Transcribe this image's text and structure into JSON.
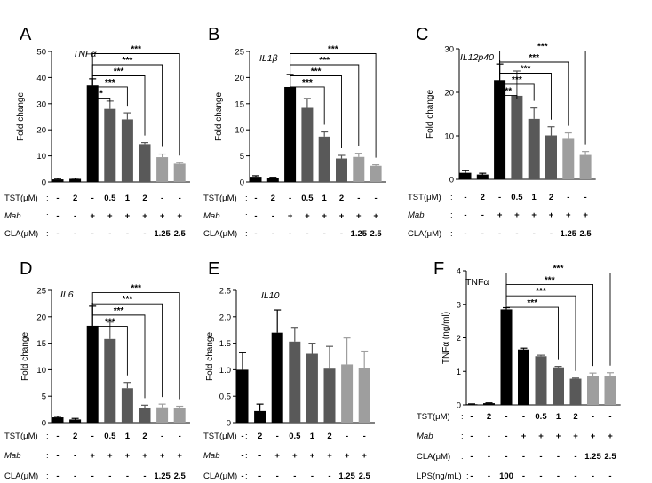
{
  "chart_data": [
    {
      "panel": "A",
      "type": "bar",
      "gene": "TNFα",
      "ylabel": "Fold change",
      "ylim": [
        0,
        50
      ],
      "yticks": [
        0,
        10,
        20,
        30,
        40,
        50
      ],
      "values": [
        1,
        1.2,
        37,
        28,
        24,
        14.5,
        9.5,
        7
      ],
      "errors": [
        0.3,
        0.3,
        2.5,
        3,
        2.5,
        0.6,
        1.2,
        0.4
      ],
      "colors": [
        "#000000",
        "#000000",
        "#000000",
        "#595959",
        "#595959",
        "#595959",
        "#9e9e9e",
        "#9e9e9e"
      ],
      "comparisons": [
        {
          "to": 3,
          "label": "*"
        },
        {
          "to": 4,
          "label": "***"
        },
        {
          "to": 5,
          "label": "***"
        },
        {
          "to": 6,
          "label": "***"
        },
        {
          "to": 7,
          "label": "***"
        }
      ],
      "conditions": [
        {
          "label": "TST(μM)",
          "italic": false,
          "values": [
            "-",
            "2",
            "-",
            "0.5",
            "1",
            "2",
            "-",
            "-"
          ]
        },
        {
          "label": "Mab",
          "italic": true,
          "values": [
            "-",
            "-",
            "+",
            "+",
            "+",
            "+",
            "+",
            "+"
          ]
        },
        {
          "label": "CLA(μM)",
          "italic": false,
          "values": [
            "-",
            "-",
            "-",
            "-",
            "-",
            "-",
            "1.25",
            "2.5"
          ]
        }
      ]
    },
    {
      "panel": "B",
      "type": "bar",
      "gene": "IL1β",
      "ylabel": "Fold change",
      "ylim": [
        0,
        25
      ],
      "yticks": [
        0,
        5,
        10,
        15,
        20,
        25
      ],
      "values": [
        1,
        0.7,
        18.2,
        14.2,
        8.7,
        4.5,
        4.8,
        3.1
      ],
      "errors": [
        0.2,
        0.2,
        2.4,
        1.8,
        0.9,
        0.6,
        0.7,
        0.2
      ],
      "colors": [
        "#000000",
        "#000000",
        "#000000",
        "#595959",
        "#595959",
        "#595959",
        "#9e9e9e",
        "#9e9e9e"
      ],
      "comparisons": [
        {
          "to": 4,
          "label": "***"
        },
        {
          "to": 5,
          "label": "***"
        },
        {
          "to": 6,
          "label": "***"
        },
        {
          "to": 7,
          "label": "***"
        }
      ],
      "conditions": [
        {
          "label": "TST(μM)",
          "italic": false,
          "values": [
            "-",
            "2",
            "-",
            "0.5",
            "1",
            "2",
            "-",
            "-"
          ]
        },
        {
          "label": "Mab",
          "italic": true,
          "values": [
            "-",
            "-",
            "+",
            "+",
            "+",
            "+",
            "+",
            "+"
          ]
        },
        {
          "label": "CLA(μM)",
          "italic": false,
          "values": [
            "-",
            "-",
            "-",
            "-",
            "-",
            "-",
            "1.25",
            "2.5"
          ]
        }
      ]
    },
    {
      "panel": "C",
      "type": "bar",
      "gene": "IL12p40",
      "ylabel": "Fold change",
      "ylim": [
        0,
        30
      ],
      "yticks": [
        0,
        10,
        20,
        30
      ],
      "values": [
        1.5,
        1.1,
        22.8,
        19.2,
        13.9,
        10.1,
        9.5,
        5.6
      ],
      "errors": [
        0.5,
        0.3,
        3.7,
        5.7,
        2.5,
        2.0,
        1.2,
        0.8
      ],
      "colors": [
        "#000000",
        "#000000",
        "#000000",
        "#595959",
        "#595959",
        "#595959",
        "#9e9e9e",
        "#9e9e9e"
      ],
      "comparisons": [
        {
          "to": 3,
          "label": "**"
        },
        {
          "to": 4,
          "label": "***"
        },
        {
          "to": 5,
          "label": "***"
        },
        {
          "to": 6,
          "label": "***"
        },
        {
          "to": 7,
          "label": "***"
        }
      ],
      "conditions": [
        {
          "label": "TST(μM)",
          "italic": false,
          "values": [
            "-",
            "2",
            "-",
            "0.5",
            "1",
            "2",
            "-",
            "-"
          ]
        },
        {
          "label": "Mab",
          "italic": true,
          "values": [
            "-",
            "-",
            "+",
            "+",
            "+",
            "+",
            "+",
            "+"
          ]
        },
        {
          "label": "CLA(μM)",
          "italic": false,
          "values": [
            "-",
            "-",
            "-",
            "-",
            "-",
            "-",
            "1.25",
            "2.5"
          ]
        }
      ]
    },
    {
      "panel": "D",
      "type": "bar",
      "gene": "IL6",
      "ylabel": "Fold change",
      "ylim": [
        0,
        25
      ],
      "yticks": [
        0,
        5,
        10,
        15,
        20,
        25
      ],
      "values": [
        1,
        0.6,
        18.3,
        15.8,
        6.5,
        2.8,
        2.9,
        2.7
      ],
      "errors": [
        0.2,
        0.2,
        3.7,
        3.2,
        1.1,
        0.5,
        0.6,
        0.4
      ],
      "colors": [
        "#000000",
        "#000000",
        "#000000",
        "#595959",
        "#595959",
        "#595959",
        "#9e9e9e",
        "#9e9e9e"
      ],
      "comparisons": [
        {
          "to": 4,
          "label": "***"
        },
        {
          "to": 5,
          "label": "***"
        },
        {
          "to": 6,
          "label": "***"
        },
        {
          "to": 7,
          "label": "***"
        }
      ],
      "conditions": [
        {
          "label": "TST(μM)",
          "italic": false,
          "values": [
            "-",
            "2",
            "-",
            "0.5",
            "1",
            "2",
            "-",
            "-"
          ]
        },
        {
          "label": "Mab",
          "italic": true,
          "values": [
            "-",
            "-",
            "+",
            "+",
            "+",
            "+",
            "+",
            "+"
          ]
        },
        {
          "label": "CLA(μM)",
          "italic": false,
          "values": [
            "-",
            "-",
            "-",
            "-",
            "-",
            "-",
            "1.25",
            "2.5"
          ]
        }
      ]
    },
    {
      "panel": "E",
      "type": "bar",
      "gene": "IL10",
      "ylabel": "Fold change",
      "ylim": [
        0,
        2.5
      ],
      "yticks": [
        "0",
        "0.5",
        "1.0",
        "1.5",
        "2.0",
        "2.5"
      ],
      "values": [
        1.0,
        0.22,
        1.7,
        1.53,
        1.3,
        1.02,
        1.1,
        1.03
      ],
      "errors": [
        0.32,
        0.13,
        0.43,
        0.27,
        0.2,
        0.42,
        0.5,
        0.32
      ],
      "colors": [
        "#000000",
        "#000000",
        "#000000",
        "#595959",
        "#595959",
        "#595959",
        "#9e9e9e",
        "#9e9e9e"
      ],
      "comparisons": [],
      "conditions": [
        {
          "label": "TST(μM)",
          "italic": false,
          "values": [
            "-",
            "2",
            "-",
            "0.5",
            "1",
            "2",
            "-",
            "-"
          ]
        },
        {
          "label": "Mab",
          "italic": true,
          "values": [
            "-",
            "-",
            "+",
            "+",
            "+",
            "+",
            "+",
            "+"
          ]
        },
        {
          "label": "CLA(μM)",
          "italic": false,
          "values": [
            "-",
            "-",
            "-",
            "-",
            "-",
            "-",
            "1.25",
            "2.5"
          ]
        }
      ]
    },
    {
      "panel": "F",
      "type": "bar",
      "gene": "TNFα",
      "ylabel": "TNFα (ng/ml)",
      "ylim": [
        0,
        4
      ],
      "yticks": [
        0,
        1,
        2,
        3,
        4
      ],
      "values": [
        0.02,
        0.05,
        2.85,
        1.65,
        1.45,
        1.12,
        0.78,
        0.87,
        0.86
      ],
      "errors": [
        0.01,
        0.01,
        0.05,
        0.04,
        0.03,
        0.03,
        0.02,
        0.08,
        0.1
      ],
      "colors": [
        "#000000",
        "#000000",
        "#000000",
        "#000000",
        "#595959",
        "#595959",
        "#595959",
        "#9e9e9e",
        "#9e9e9e"
      ],
      "comparisons": [
        {
          "to": 5,
          "label": "***"
        },
        {
          "to": 6,
          "label": "***"
        },
        {
          "to": 7,
          "label": "***"
        },
        {
          "to": 8,
          "label": "***"
        }
      ],
      "conditions": [
        {
          "label": "TST(μM)",
          "italic": false,
          "values": [
            "-",
            "2",
            "-",
            "-",
            "0.5",
            "1",
            "2",
            "-",
            "-"
          ]
        },
        {
          "label": "Mab",
          "italic": true,
          "values": [
            "-",
            "-",
            "-",
            "+",
            "+",
            "+",
            "+",
            "+",
            "+"
          ]
        },
        {
          "label": "CLA(μM)",
          "italic": false,
          "values": [
            "-",
            "-",
            "-",
            "-",
            "-",
            "-",
            "-",
            "1.25",
            "2.5"
          ]
        },
        {
          "label": "LPS(ng/mL)",
          "italic": false,
          "values": [
            "-",
            "-",
            "100",
            "-",
            "-",
            "-",
            "-",
            "-",
            "-"
          ]
        }
      ]
    }
  ]
}
